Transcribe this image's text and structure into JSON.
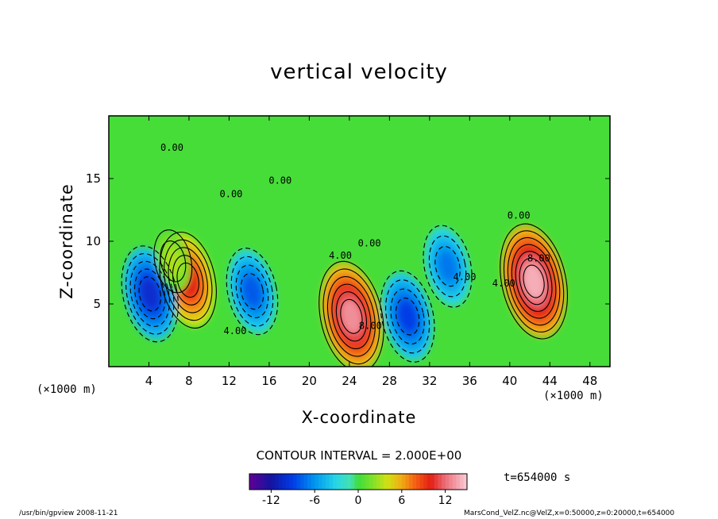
{
  "chart_data": {
    "type": "heatmap",
    "title": "vertical velocity",
    "xlabel": "X-coordinate",
    "ylabel": "Z-coordinate",
    "x_unit_label": "(×1000 m)",
    "z_unit_label": "(×1000 m)",
    "xlim": [
      0,
      50
    ],
    "ylim": [
      0,
      20
    ],
    "x_ticks": [
      4,
      8,
      12,
      16,
      20,
      24,
      28,
      32,
      36,
      40,
      44,
      48
    ],
    "y_ticks": [
      5,
      10,
      15
    ],
    "contour_interval_label": "CONTOUR INTERVAL = 2.000E+00",
    "contour_labels": [
      {
        "text": "0.00",
        "x": 6.3,
        "z": 17.2
      },
      {
        "text": "0.00",
        "x": 12.2,
        "z": 13.5
      },
      {
        "text": "0.00",
        "x": 17.1,
        "z": 14.6
      },
      {
        "text": "0.00",
        "x": 40.9,
        "z": 11.8
      },
      {
        "text": "0.00",
        "x": 26.0,
        "z": 9.6
      },
      {
        "text": "4.00",
        "x": 12.6,
        "z": 2.6
      },
      {
        "text": "4.00",
        "x": 23.1,
        "z": 8.6
      },
      {
        "text": "4.00",
        "x": 35.5,
        "z": 6.9
      },
      {
        "text": "4.00",
        "x": 39.4,
        "z": 6.4
      },
      {
        "text": "8.00",
        "x": 42.9,
        "z": 8.4
      },
      {
        "text": "8.00",
        "x": 26.1,
        "z": 3.0
      }
    ],
    "features": [
      {
        "x": 7.9,
        "z": 6.9,
        "value": 10
      },
      {
        "x": 24.2,
        "z": 4.0,
        "value": 13
      },
      {
        "x": 42.4,
        "z": 6.8,
        "value": 14
      },
      {
        "x": 4.1,
        "z": 5.8,
        "value": -10
      },
      {
        "x": 14.3,
        "z": 6.0,
        "value": -8
      },
      {
        "x": 29.8,
        "z": 4.0,
        "value": -9
      },
      {
        "x": 33.8,
        "z": 8.0,
        "value": -7
      },
      {
        "x": 6.4,
        "z": 8.4,
        "value": 3
      }
    ],
    "colorbar": {
      "min": -15,
      "max": 15,
      "tick_labels": [
        "-12",
        "-6",
        "0",
        "6",
        "12"
      ],
      "tick_values": [
        -12,
        -6,
        0,
        6,
        12
      ]
    }
  },
  "annotations": {
    "time": "t=654000 s",
    "footer_left": "/usr/bin/gpview  2008-11-21",
    "footer_right": "MarsCond_VelZ.nc@VelZ,x=0:50000,z=0:20000,t=654000"
  }
}
